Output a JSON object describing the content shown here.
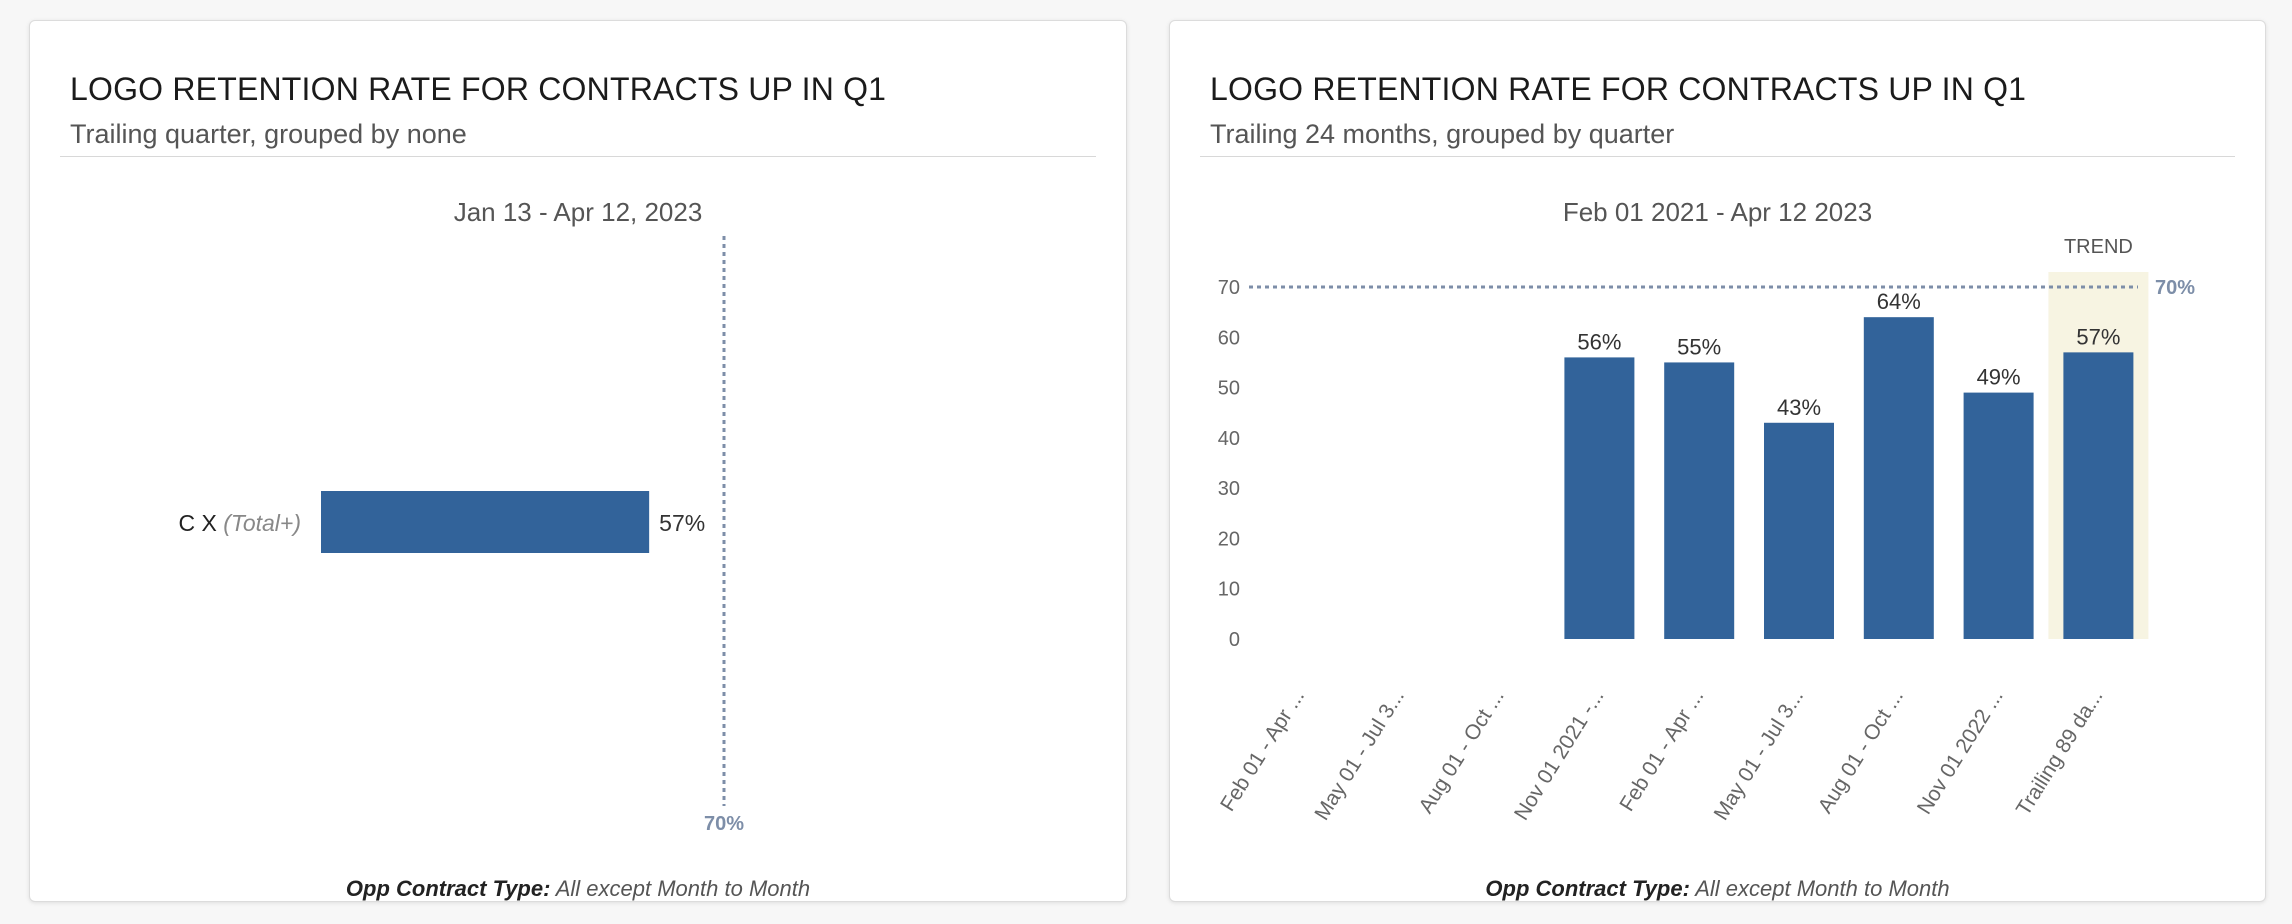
{
  "colors": {
    "bar": "#32639a",
    "target": "#7d8ea8",
    "trend_band": "#f7f4e2",
    "axis_text": "#666666",
    "label_text": "#333333"
  },
  "cards": [
    {
      "title": "LOGO RETENTION RATE FOR CONTRACTS UP IN Q1",
      "subtitle": "Trailing quarter, grouped by none",
      "date_range": "Jan 13 - Apr 12, 2023",
      "footer_key": "Opp Contract Type:",
      "footer_value": "All except Month to Month"
    },
    {
      "title": "LOGO RETENTION RATE FOR CONTRACTS UP IN Q1",
      "subtitle": "Trailing 24 months, grouped by quarter",
      "date_range": "Feb 01 2021 - Apr 12 2023",
      "footer_key": "Opp Contract Type:",
      "footer_value": "All except Month to Month"
    }
  ],
  "chart_data": [
    {
      "type": "bar",
      "orientation": "horizontal",
      "title": "LOGO RETENTION RATE FOR CONTRACTS UP IN Q1",
      "categories": [
        "C X"
      ],
      "category_suffix": "(Total+)",
      "values": [
        57
      ],
      "value_labels": [
        "57%"
      ],
      "xlim": [
        0,
        75
      ],
      "target": 70,
      "target_label": "70%"
    },
    {
      "type": "bar",
      "orientation": "vertical",
      "title": "LOGO RETENTION RATE FOR CONTRACTS UP IN Q1",
      "categories": [
        "Feb 01 - Apr ...",
        "May 01 - Jul 3...",
        "Aug 01 - Oct ...",
        "Nov 01 2021 -...",
        "Feb 01 - Apr ...",
        "May 01 - Jul 3...",
        "Aug 01 - Oct ...",
        "Nov 01 2022 ...",
        "Trailing 89 da..."
      ],
      "values": [
        null,
        null,
        null,
        56,
        55,
        43,
        64,
        49,
        57
      ],
      "value_labels": [
        "",
        "",
        "",
        "56%",
        "55%",
        "43%",
        "64%",
        "49%",
        "57%"
      ],
      "y_ticks": [
        0,
        10,
        20,
        30,
        40,
        50,
        60,
        70
      ],
      "ylim": [
        0,
        70
      ],
      "target": 70,
      "target_label": "70%",
      "trend_label": "TREND",
      "trend_index": 8
    }
  ]
}
